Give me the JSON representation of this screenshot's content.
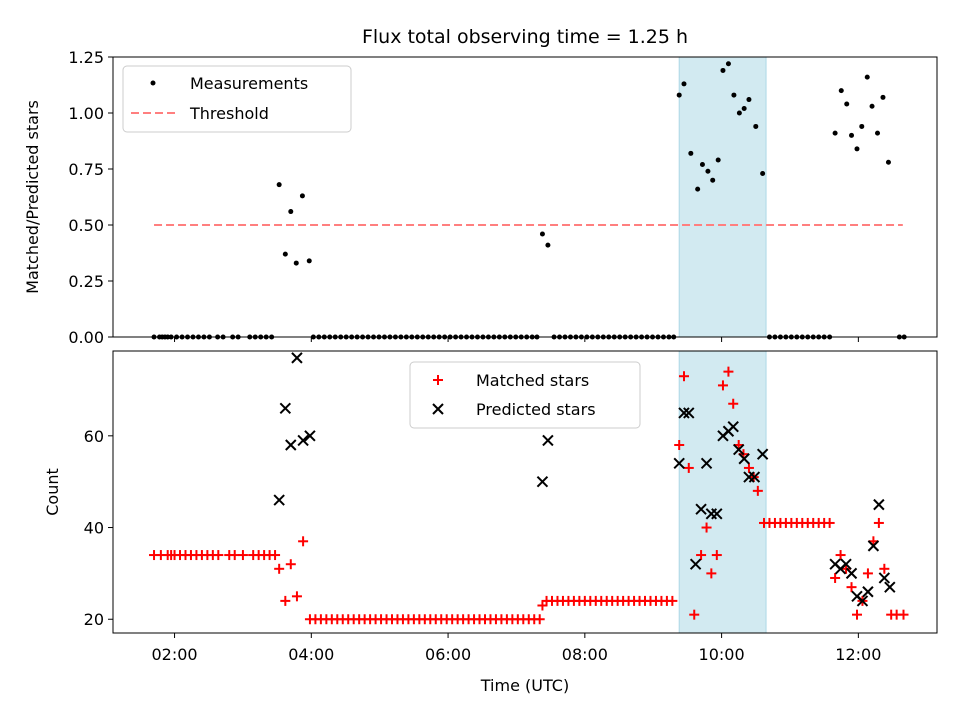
{
  "chart_data": {
    "type": "scatter",
    "title": "Flux total observing time = 1.25 h",
    "xlabel": "Time (UTC)",
    "x_ticks": [
      "02:00",
      "04:00",
      "06:00",
      "08:00",
      "10:00",
      "12:00"
    ],
    "x_tick_hours": [
      2,
      4,
      6,
      8,
      10,
      12
    ],
    "xlim_hours": [
      1.1,
      13.15
    ],
    "highlight_span_hours": [
      9.38,
      10.65
    ],
    "colors": {
      "highlight": "#add8e6",
      "threshold": "#ff7f7f",
      "matched": "#ff0000",
      "predicted": "#000000",
      "measurements": "#000000"
    },
    "panels": [
      {
        "ylabel": "Matched/Predicted stars",
        "ylim": [
          0,
          1.25
        ],
        "y_ticks": [
          0.0,
          0.25,
          0.5,
          0.75,
          1.0,
          1.25
        ],
        "y_tick_labels": [
          "0.00",
          "0.25",
          "0.50",
          "0.75",
          "1.00",
          "1.25"
        ],
        "legend": {
          "position": "upper left",
          "entries": [
            "Measurements",
            "Threshold"
          ]
        },
        "threshold": {
          "name": "Threshold",
          "y": 0.5,
          "x_range_hours": [
            1.7,
            12.65
          ]
        },
        "measurements_name": "Measurements",
        "measurements": [
          [
            1.7,
            0
          ],
          [
            1.78,
            0
          ],
          [
            1.82,
            0
          ],
          [
            1.86,
            0
          ],
          [
            1.9,
            0
          ],
          [
            1.95,
            0
          ],
          [
            2.03,
            0
          ],
          [
            2.11,
            0
          ],
          [
            2.19,
            0
          ],
          [
            2.27,
            0
          ],
          [
            2.35,
            0
          ],
          [
            2.43,
            0
          ],
          [
            2.51,
            0
          ],
          [
            2.63,
            0
          ],
          [
            2.71,
            0
          ],
          [
            2.85,
            0
          ],
          [
            2.93,
            0
          ],
          [
            3.1,
            0
          ],
          [
            3.18,
            0
          ],
          [
            3.26,
            0
          ],
          [
            3.34,
            0
          ],
          [
            3.42,
            0
          ],
          [
            3.53,
            0.68
          ],
          [
            3.62,
            0.37
          ],
          [
            3.7,
            0.56
          ],
          [
            3.78,
            0.33
          ],
          [
            3.87,
            0.63
          ],
          [
            3.97,
            0.34
          ],
          [
            4.03,
            0
          ],
          [
            4.11,
            0
          ],
          [
            4.19,
            0
          ],
          [
            4.27,
            0
          ],
          [
            4.35,
            0
          ],
          [
            4.43,
            0
          ],
          [
            4.51,
            0
          ],
          [
            4.59,
            0
          ],
          [
            4.67,
            0
          ],
          [
            4.75,
            0
          ],
          [
            4.83,
            0
          ],
          [
            4.91,
            0
          ],
          [
            4.99,
            0
          ],
          [
            5.07,
            0
          ],
          [
            5.15,
            0
          ],
          [
            5.23,
            0
          ],
          [
            5.31,
            0
          ],
          [
            5.39,
            0
          ],
          [
            5.47,
            0
          ],
          [
            5.55,
            0
          ],
          [
            5.63,
            0
          ],
          [
            5.71,
            0
          ],
          [
            5.79,
            0
          ],
          [
            5.87,
            0
          ],
          [
            5.95,
            0
          ],
          [
            6.03,
            0
          ],
          [
            6.11,
            0
          ],
          [
            6.19,
            0
          ],
          [
            6.27,
            0
          ],
          [
            6.35,
            0
          ],
          [
            6.43,
            0
          ],
          [
            6.51,
            0
          ],
          [
            6.59,
            0
          ],
          [
            6.67,
            0
          ],
          [
            6.75,
            0
          ],
          [
            6.83,
            0
          ],
          [
            6.91,
            0
          ],
          [
            6.99,
            0
          ],
          [
            7.07,
            0
          ],
          [
            7.15,
            0
          ],
          [
            7.23,
            0
          ],
          [
            7.3,
            0
          ],
          [
            7.38,
            0.46
          ],
          [
            7.46,
            0.41
          ],
          [
            7.55,
            0
          ],
          [
            7.63,
            0
          ],
          [
            7.71,
            0
          ],
          [
            7.79,
            0
          ],
          [
            7.87,
            0
          ],
          [
            7.95,
            0
          ],
          [
            8.03,
            0
          ],
          [
            8.11,
            0
          ],
          [
            8.19,
            0
          ],
          [
            8.27,
            0
          ],
          [
            8.35,
            0
          ],
          [
            8.43,
            0
          ],
          [
            8.51,
            0
          ],
          [
            8.59,
            0
          ],
          [
            8.67,
            0
          ],
          [
            8.75,
            0
          ],
          [
            8.83,
            0
          ],
          [
            8.91,
            0
          ],
          [
            8.99,
            0
          ],
          [
            9.07,
            0
          ],
          [
            9.15,
            0
          ],
          [
            9.23,
            0
          ],
          [
            9.3,
            0
          ],
          [
            9.38,
            1.08
          ],
          [
            9.45,
            1.13
          ],
          [
            9.55,
            0.82
          ],
          [
            9.65,
            0.66
          ],
          [
            9.72,
            0.77
          ],
          [
            9.8,
            0.74
          ],
          [
            9.87,
            0.7
          ],
          [
            9.95,
            0.79
          ],
          [
            10.02,
            1.19
          ],
          [
            10.1,
            1.22
          ],
          [
            10.18,
            1.08
          ],
          [
            10.26,
            1.0
          ],
          [
            10.33,
            1.02
          ],
          [
            10.4,
            1.06
          ],
          [
            10.5,
            0.94
          ],
          [
            10.6,
            0.73
          ],
          [
            10.7,
            0
          ],
          [
            10.78,
            0
          ],
          [
            10.86,
            0
          ],
          [
            10.94,
            0
          ],
          [
            11.02,
            0
          ],
          [
            11.1,
            0
          ],
          [
            11.18,
            0
          ],
          [
            11.26,
            0
          ],
          [
            11.34,
            0
          ],
          [
            11.42,
            0
          ],
          [
            11.5,
            0
          ],
          [
            11.58,
            0
          ],
          [
            11.66,
            0.91
          ],
          [
            11.75,
            1.1
          ],
          [
            11.83,
            1.04
          ],
          [
            11.9,
            0.9
          ],
          [
            11.98,
            0.84
          ],
          [
            12.05,
            0.94
          ],
          [
            12.13,
            1.16
          ],
          [
            12.2,
            1.03
          ],
          [
            12.28,
            0.91
          ],
          [
            12.36,
            1.07
          ],
          [
            12.44,
            0.78
          ],
          [
            12.6,
            0
          ],
          [
            12.67,
            0
          ]
        ]
      },
      {
        "ylabel": "Count",
        "ylim": [
          17,
          78.5
        ],
        "y_ticks": [
          20,
          40,
          60
        ],
        "y_tick_labels": [
          "20",
          "40",
          "60"
        ],
        "legend": {
          "position": "upper center",
          "entries": [
            "Matched stars",
            "Predicted stars"
          ]
        },
        "matched_name": "Matched stars",
        "predicted_name": "Predicted stars",
        "matched": [
          [
            1.7,
            34
          ],
          [
            1.8,
            34
          ],
          [
            1.9,
            34
          ],
          [
            1.95,
            34
          ],
          [
            2.0,
            34
          ],
          [
            2.08,
            34
          ],
          [
            2.16,
            34
          ],
          [
            2.24,
            34
          ],
          [
            2.32,
            34
          ],
          [
            2.4,
            34
          ],
          [
            2.48,
            34
          ],
          [
            2.56,
            34
          ],
          [
            2.64,
            34
          ],
          [
            2.8,
            34
          ],
          [
            2.88,
            34
          ],
          [
            3.0,
            34
          ],
          [
            3.15,
            34
          ],
          [
            3.23,
            34
          ],
          [
            3.31,
            34
          ],
          [
            3.39,
            34
          ],
          [
            3.47,
            34
          ],
          [
            3.53,
            31
          ],
          [
            3.62,
            24
          ],
          [
            3.7,
            32
          ],
          [
            3.79,
            25
          ],
          [
            3.88,
            37
          ],
          [
            3.98,
            20
          ],
          [
            4.06,
            20
          ],
          [
            4.14,
            20
          ],
          [
            4.22,
            20
          ],
          [
            4.3,
            20
          ],
          [
            4.38,
            20
          ],
          [
            4.46,
            20
          ],
          [
            4.54,
            20
          ],
          [
            4.62,
            20
          ],
          [
            4.7,
            20
          ],
          [
            4.78,
            20
          ],
          [
            4.86,
            20
          ],
          [
            4.94,
            20
          ],
          [
            5.02,
            20
          ],
          [
            5.1,
            20
          ],
          [
            5.18,
            20
          ],
          [
            5.26,
            20
          ],
          [
            5.34,
            20
          ],
          [
            5.42,
            20
          ],
          [
            5.5,
            20
          ],
          [
            5.58,
            20
          ],
          [
            5.66,
            20
          ],
          [
            5.74,
            20
          ],
          [
            5.82,
            20
          ],
          [
            5.9,
            20
          ],
          [
            5.98,
            20
          ],
          [
            6.06,
            20
          ],
          [
            6.14,
            20
          ],
          [
            6.22,
            20
          ],
          [
            6.3,
            20
          ],
          [
            6.38,
            20
          ],
          [
            6.46,
            20
          ],
          [
            6.54,
            20
          ],
          [
            6.62,
            20
          ],
          [
            6.7,
            20
          ],
          [
            6.78,
            20
          ],
          [
            6.86,
            20
          ],
          [
            6.94,
            20
          ],
          [
            7.02,
            20
          ],
          [
            7.1,
            20
          ],
          [
            7.18,
            20
          ],
          [
            7.26,
            20
          ],
          [
            7.34,
            20
          ],
          [
            7.38,
            23
          ],
          [
            7.44,
            24
          ],
          [
            7.52,
            24
          ],
          [
            7.6,
            24
          ],
          [
            7.68,
            24
          ],
          [
            7.76,
            24
          ],
          [
            7.84,
            24
          ],
          [
            7.92,
            24
          ],
          [
            8.0,
            24
          ],
          [
            8.08,
            24
          ],
          [
            8.16,
            24
          ],
          [
            8.24,
            24
          ],
          [
            8.32,
            24
          ],
          [
            8.4,
            24
          ],
          [
            8.48,
            24
          ],
          [
            8.56,
            24
          ],
          [
            8.64,
            24
          ],
          [
            8.72,
            24
          ],
          [
            8.8,
            24
          ],
          [
            8.88,
            24
          ],
          [
            8.96,
            24
          ],
          [
            9.04,
            24
          ],
          [
            9.12,
            24
          ],
          [
            9.2,
            24
          ],
          [
            9.28,
            24
          ],
          [
            9.38,
            58
          ],
          [
            9.45,
            73
          ],
          [
            9.52,
            53
          ],
          [
            9.6,
            21
          ],
          [
            9.7,
            34
          ],
          [
            9.78,
            40
          ],
          [
            9.85,
            30
          ],
          [
            9.93,
            34
          ],
          [
            10.02,
            71
          ],
          [
            10.1,
            74
          ],
          [
            10.17,
            67
          ],
          [
            10.25,
            58
          ],
          [
            10.32,
            56
          ],
          [
            10.4,
            53
          ],
          [
            10.47,
            51
          ],
          [
            10.53,
            48
          ],
          [
            10.62,
            41
          ],
          [
            10.7,
            41
          ],
          [
            10.78,
            41
          ],
          [
            10.86,
            41
          ],
          [
            10.94,
            41
          ],
          [
            11.02,
            41
          ],
          [
            11.1,
            41
          ],
          [
            11.18,
            41
          ],
          [
            11.26,
            41
          ],
          [
            11.34,
            41
          ],
          [
            11.42,
            41
          ],
          [
            11.5,
            41
          ],
          [
            11.58,
            41
          ],
          [
            11.66,
            29
          ],
          [
            11.74,
            34
          ],
          [
            11.82,
            31
          ],
          [
            11.9,
            27
          ],
          [
            11.98,
            21
          ],
          [
            12.06,
            24
          ],
          [
            12.14,
            30
          ],
          [
            12.22,
            37
          ],
          [
            12.3,
            41
          ],
          [
            12.38,
            31
          ],
          [
            12.48,
            21
          ],
          [
            12.56,
            21
          ],
          [
            12.66,
            21
          ]
        ],
        "predicted": [
          [
            3.53,
            46
          ],
          [
            3.62,
            66
          ],
          [
            3.7,
            58
          ],
          [
            3.79,
            77
          ],
          [
            3.88,
            59
          ],
          [
            3.98,
            60
          ],
          [
            7.38,
            50
          ],
          [
            7.46,
            59
          ],
          [
            9.38,
            54
          ],
          [
            9.45,
            65
          ],
          [
            9.52,
            65
          ],
          [
            9.62,
            32
          ],
          [
            9.7,
            44
          ],
          [
            9.78,
            54
          ],
          [
            9.85,
            43
          ],
          [
            9.93,
            43
          ],
          [
            10.02,
            60
          ],
          [
            10.1,
            61
          ],
          [
            10.17,
            62
          ],
          [
            10.25,
            57
          ],
          [
            10.33,
            55
          ],
          [
            10.4,
            51
          ],
          [
            10.48,
            51
          ],
          [
            10.6,
            56
          ],
          [
            11.66,
            32
          ],
          [
            11.74,
            31
          ],
          [
            11.82,
            32
          ],
          [
            11.9,
            30
          ],
          [
            11.98,
            25
          ],
          [
            12.06,
            24
          ],
          [
            12.14,
            26
          ],
          [
            12.22,
            36
          ],
          [
            12.3,
            45
          ],
          [
            12.38,
            29
          ],
          [
            12.46,
            27
          ]
        ]
      }
    ]
  }
}
